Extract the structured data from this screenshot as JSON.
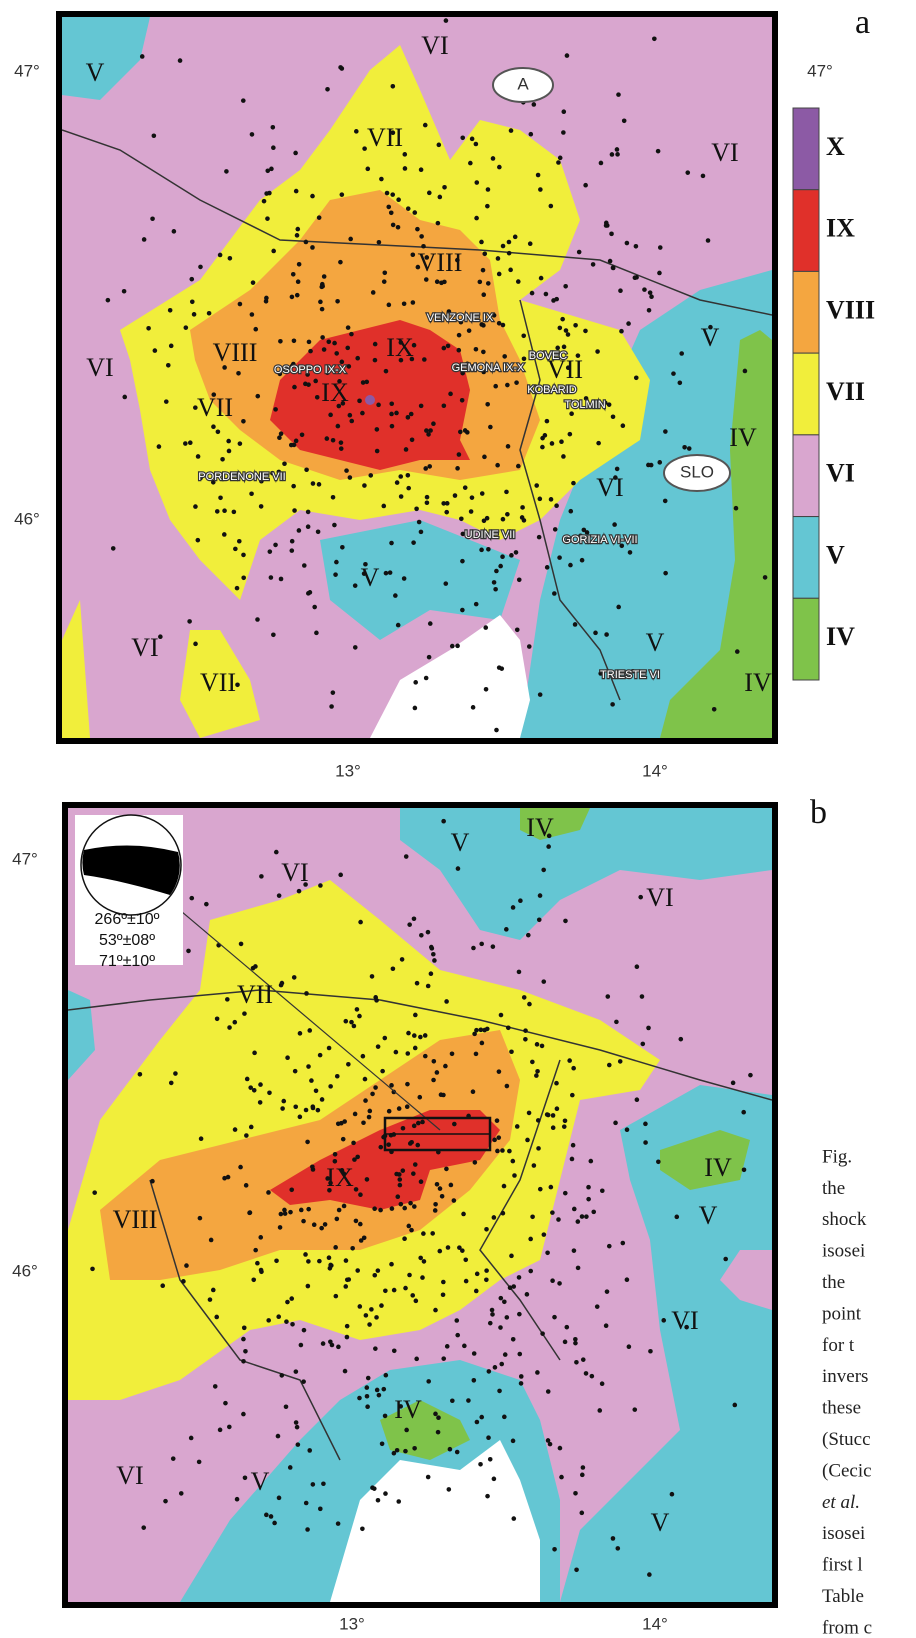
{
  "panels": [
    {
      "letter": "a",
      "lat_labels": [
        "47°",
        "46°"
      ],
      "lon_labels": [
        "13°",
        "14°"
      ],
      "intensity_labels": [
        "VI",
        "V",
        "VII",
        "VI",
        "VIII",
        "V",
        "VI",
        "VIII",
        "IX",
        "VII",
        "VII",
        "IX",
        "IV",
        "VI",
        "V",
        "VI",
        "V",
        "VII",
        "IV"
      ],
      "place_labels": [
        "VENZONE IX",
        "OSOPPO IX-X",
        "GEMONA IX-X",
        "BOVEC",
        "KOBARID",
        "TOLMIN",
        "PORDENONE VII",
        "UDINE VII",
        "GORIZIA VI-VII",
        "TRIESTE VI"
      ],
      "country_labels": [
        "A",
        "SLO"
      ],
      "legend": [
        "X",
        "IX",
        "VIII",
        "VII",
        "VI",
        "V",
        "IV"
      ]
    },
    {
      "letter": "b",
      "lat_labels": [
        "47°",
        "46°"
      ],
      "lon_labels": [
        "13°",
        "14°"
      ],
      "intensity_labels": [
        "VI",
        "V",
        "IV",
        "VI",
        "VII",
        "IX",
        "IV",
        "V",
        "VIII",
        "VI",
        "IV",
        "VI",
        "V",
        "V"
      ],
      "focal_mechanism": [
        "266º±10º",
        "53º±08º",
        "71º±10º"
      ]
    }
  ],
  "caption_lines": [
    "Fig.",
    "the",
    "shock",
    "isosei",
    "the",
    "point",
    "for t",
    "invers",
    "these",
    "(Stucc",
    "(Cecic",
    "et al.",
    "isosei",
    "first l",
    "Table",
    "from c"
  ]
}
